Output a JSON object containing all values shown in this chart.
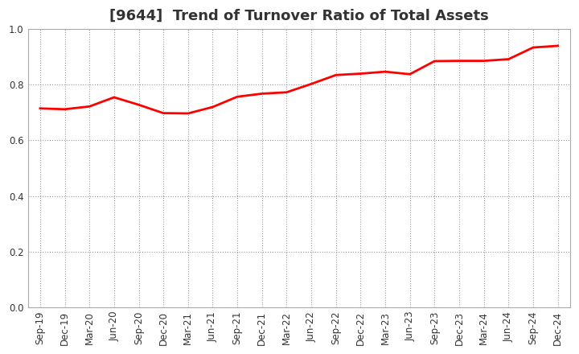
{
  "title": "[9644]  Trend of Turnover Ratio of Total Assets",
  "x_labels": [
    "Sep-19",
    "Dec-19",
    "Mar-20",
    "Jun-20",
    "Sep-20",
    "Dec-20",
    "Mar-21",
    "Jun-21",
    "Sep-21",
    "Dec-21",
    "Mar-22",
    "Jun-22",
    "Sep-22",
    "Dec-22",
    "Mar-23",
    "Jun-23",
    "Sep-23",
    "Dec-23",
    "Mar-24",
    "Jun-24",
    "Sep-24",
    "Dec-24"
  ],
  "y_values": [
    0.715,
    0.712,
    0.722,
    0.755,
    0.728,
    0.698,
    0.697,
    0.72,
    0.757,
    0.768,
    0.773,
    0.803,
    0.835,
    0.84,
    0.847,
    0.838,
    0.885,
    0.886,
    0.886,
    0.892,
    0.934,
    0.94
  ],
  "line_color": "#FF0000",
  "line_width": 2.0,
  "ylim": [
    0.0,
    1.0
  ],
  "yticks": [
    0.0,
    0.2,
    0.4,
    0.6,
    0.8,
    1.0
  ],
  "grid_color": "#999999",
  "background_color": "#FFFFFF",
  "title_fontsize": 13,
  "title_color": "#333333",
  "tick_fontsize": 8.5
}
